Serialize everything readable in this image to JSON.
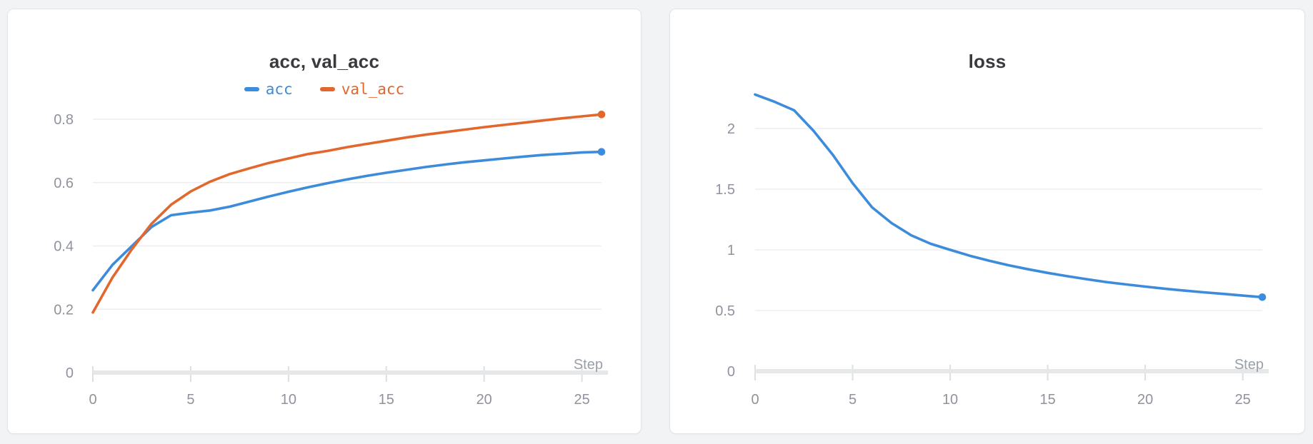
{
  "page": {
    "background": "#f2f3f4"
  },
  "chart_data": [
    {
      "type": "line",
      "title": "acc, val_acc",
      "xlabel": "Step",
      "ylabel": "",
      "x": [
        0,
        1,
        2,
        3,
        4,
        5,
        6,
        7,
        8,
        9,
        10,
        11,
        12,
        13,
        14,
        15,
        16,
        17,
        18,
        19,
        20,
        21,
        22,
        23,
        24,
        25,
        26
      ],
      "xlim": [
        0,
        26
      ],
      "ylim": [
        0,
        0.88
      ],
      "x_ticks": [
        0,
        5,
        10,
        15,
        20,
        25
      ],
      "x_tick_labels": [
        "0",
        "5",
        "10",
        "15",
        "20",
        "25"
      ],
      "y_ticks": [
        0,
        0.2,
        0.4,
        0.6,
        0.8
      ],
      "y_tick_labels": [
        "0",
        "0.2",
        "0.4",
        "0.6",
        "0.8"
      ],
      "grid": true,
      "legend_position": "top-center",
      "end_markers": true,
      "series": [
        {
          "name": "acc",
          "color": "#3d8bdb",
          "values": [
            0.26,
            0.34,
            0.4,
            0.46,
            0.497,
            0.505,
            0.512,
            0.524,
            0.54,
            0.556,
            0.571,
            0.585,
            0.598,
            0.61,
            0.621,
            0.631,
            0.64,
            0.649,
            0.657,
            0.664,
            0.67,
            0.676,
            0.682,
            0.687,
            0.691,
            0.695,
            0.697
          ]
        },
        {
          "name": "val_acc",
          "color": "#e2672d",
          "values": [
            0.19,
            0.3,
            0.39,
            0.47,
            0.53,
            0.572,
            0.603,
            0.627,
            0.645,
            0.662,
            0.676,
            0.69,
            0.7,
            0.712,
            0.722,
            0.732,
            0.742,
            0.751,
            0.759,
            0.767,
            0.775,
            0.782,
            0.789,
            0.796,
            0.803,
            0.809,
            0.815
          ]
        }
      ]
    },
    {
      "type": "line",
      "title": "loss",
      "xlabel": "Step",
      "ylabel": "",
      "x": [
        0,
        1,
        2,
        3,
        4,
        5,
        6,
        7,
        8,
        9,
        10,
        11,
        12,
        13,
        14,
        15,
        16,
        17,
        18,
        19,
        20,
        21,
        22,
        23,
        24,
        25,
        26
      ],
      "xlim": [
        0,
        26
      ],
      "ylim": [
        0,
        2.4
      ],
      "x_ticks": [
        0,
        5,
        10,
        15,
        20,
        25
      ],
      "x_tick_labels": [
        "0",
        "5",
        "10",
        "15",
        "20",
        "25"
      ],
      "y_ticks": [
        0,
        0.5,
        1,
        1.5,
        2
      ],
      "y_tick_labels": [
        "0",
        "0.5",
        "1",
        "1.5",
        "2"
      ],
      "grid": true,
      "legend_position": "none",
      "end_markers": true,
      "series": [
        {
          "name": "loss",
          "color": "#3d8bdb",
          "values": [
            2.28,
            2.22,
            2.15,
            1.98,
            1.78,
            1.55,
            1.35,
            1.22,
            1.12,
            1.05,
            1.0,
            0.952,
            0.91,
            0.873,
            0.84,
            0.81,
            0.783,
            0.758,
            0.735,
            0.715,
            0.697,
            0.68,
            0.664,
            0.65,
            0.637,
            0.623,
            0.61
          ]
        }
      ]
    }
  ],
  "colors": {
    "gridline": "#ededee",
    "axis_bar": "#e6e7e8",
    "axis_tick": "#dddfe0",
    "tick_label": "#8f939e",
    "title": "#3a3a3e"
  }
}
